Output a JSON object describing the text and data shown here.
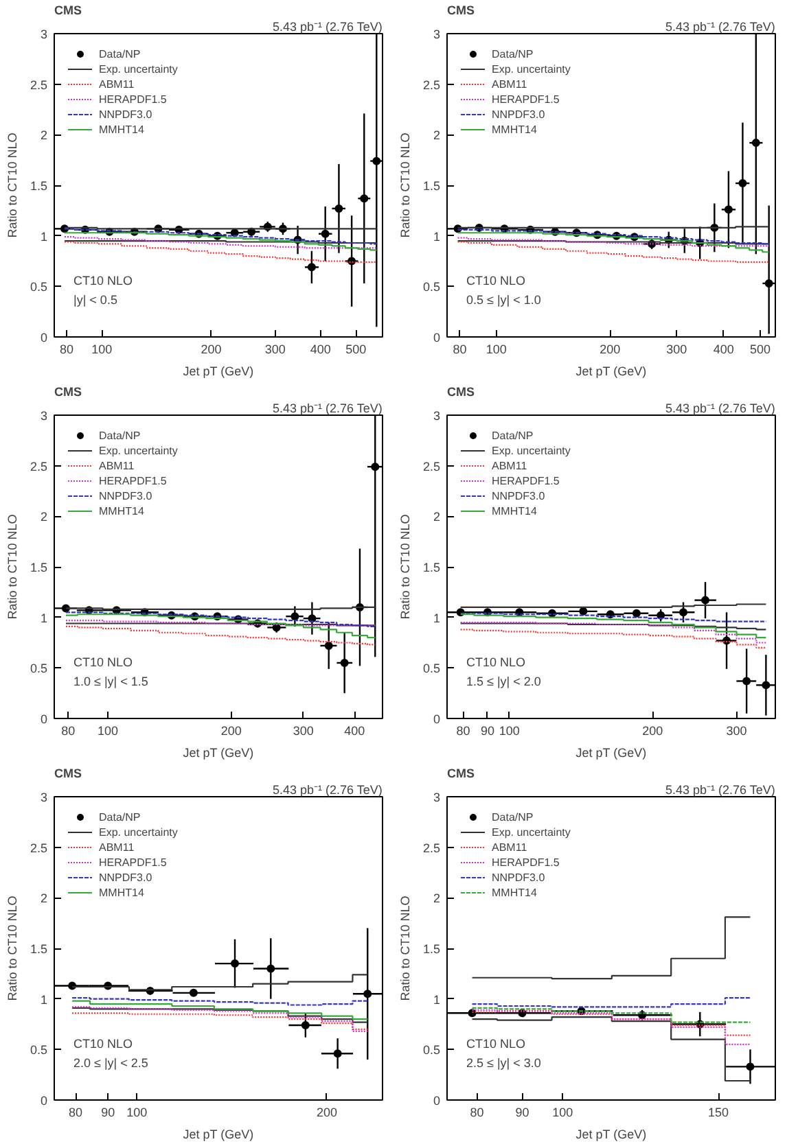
{
  "chart_data": [
    {
      "type": "step",
      "title": "CMS",
      "subtitle": "5.43 pb⁻¹ (2.76 TeV)",
      "xlabel": "Jet pT (GeV)",
      "ylabel": "Ratio to CT10 NLO",
      "annotations": [
        "CT10 NLO",
        "|y| < 0.5"
      ],
      "log": "x",
      "legend": "top left",
      "xlim": [
        74,
        592
      ],
      "xticks": [
        80,
        100,
        200,
        300,
        400,
        500
      ],
      "ylim": [
        0,
        3
      ],
      "yticks": [
        0,
        0.5,
        1,
        1.5,
        2,
        2.5,
        3
      ],
      "x": [
        79,
        90,
        105,
        123,
        143,
        163,
        185,
        208,
        232,
        258,
        286,
        315,
        346,
        378,
        412,
        449,
        487,
        527,
        570
      ],
      "series": [
        {
          "name": "Data/NP",
          "type": "scatter",
          "marker": "circle",
          "color": "#000000",
          "values": [
            1.07,
            1.06,
            1.04,
            1.04,
            1.07,
            1.06,
            1.02,
            1.0,
            1.03,
            1.04,
            1.09,
            1.07,
            0.96,
            0.69,
            1.02,
            1.27,
            0.75,
            1.37,
            1.74
          ],
          "errors": [
            0.02,
            0.02,
            0.02,
            0.02,
            0.02,
            0.02,
            0.02,
            0.03,
            0.03,
            0.04,
            0.05,
            0.06,
            0.14,
            0.16,
            0.27,
            0.44,
            0.45,
            0.84,
            [
              0.1,
              3.0
            ]
          ],
          "xerrors": [
            [
              74,
              84
            ],
            [
              84,
              97
            ],
            [
              97,
              114
            ],
            [
              114,
              133
            ],
            [
              133,
              153
            ],
            [
              153,
              174
            ],
            [
              174,
              196
            ],
            [
              196,
              220
            ],
            [
              220,
              245
            ],
            [
              245,
              272
            ],
            [
              272,
              300
            ],
            [
              300,
              330
            ],
            [
              330,
              362
            ],
            [
              362,
              395
            ],
            [
              395,
              430
            ],
            [
              430,
              468
            ],
            [
              468,
              507
            ],
            [
              507,
              548
            ],
            [
              548,
              592
            ]
          ]
        },
        {
          "name": "Exp. uncertainty",
          "color": "#333333",
          "line_style": "solid",
          "values": [
            1.08,
            1.08,
            1.07,
            1.07,
            1.07,
            1.07,
            1.07,
            1.07,
            1.07,
            1.07,
            1.07,
            1.07,
            1.07,
            1.07,
            1.07,
            1.07,
            1.07,
            1.07,
            1.07
          ]
        },
        {
          "color": "#333333",
          "line_style": "solid",
          "values": [
            0.95,
            0.95,
            0.95,
            0.95,
            0.95,
            0.95,
            0.95,
            0.95,
            0.94,
            0.94,
            0.94,
            0.94,
            0.94,
            0.94,
            0.93,
            0.93,
            0.93,
            0.93,
            0.93
          ]
        },
        {
          "name": "ABM11",
          "color": "#ff3030",
          "line_style": "dotted",
          "values": [
            0.94,
            0.93,
            0.92,
            0.9,
            0.88,
            0.87,
            0.85,
            0.83,
            0.82,
            0.8,
            0.79,
            0.78,
            0.77,
            0.76,
            0.75,
            0.75,
            0.74,
            0.74,
            0.74
          ]
        },
        {
          "name": "HERAPDF1.5",
          "color": "#cc33cc",
          "line_style": "dotted",
          "values": [
            0.99,
            0.98,
            0.97,
            0.96,
            0.95,
            0.94,
            0.93,
            0.92,
            0.91,
            0.9,
            0.9,
            0.89,
            0.89,
            0.88,
            0.88,
            0.88,
            0.88,
            0.88,
            0.88
          ]
        },
        {
          "name": "NNPDF3.0",
          "color": "#3333cc",
          "line_style": "dashed",
          "values": [
            1.07,
            1.06,
            1.05,
            1.04,
            1.04,
            1.03,
            1.02,
            1.01,
            1.0,
            0.99,
            0.98,
            0.97,
            0.96,
            0.95,
            0.95,
            0.94,
            0.93,
            0.93,
            0.92
          ]
        },
        {
          "name": "MMHT14",
          "color": "#33aa33",
          "line_style": "solid",
          "values": [
            1.03,
            1.03,
            1.03,
            1.03,
            1.02,
            1.01,
            1.0,
            0.99,
            0.98,
            0.97,
            0.96,
            0.95,
            0.94,
            0.92,
            0.91,
            0.9,
            0.88,
            0.87,
            0.86
          ]
        }
      ]
    },
    {
      "type": "step",
      "title": "CMS",
      "subtitle": "5.43 pb⁻¹ (2.76 TeV)",
      "xlabel": "Jet pT (GeV)",
      "ylabel": "Ratio to CT10 NLO",
      "annotations": [
        "CT10 NLO",
        "0.5 ≤ |y| < 1.0"
      ],
      "log": "x",
      "legend": "top left",
      "xlim": [
        74,
        548
      ],
      "xticks": [
        80,
        100,
        200,
        300,
        400,
        500
      ],
      "ylim": [
        0,
        3
      ],
      "yticks": [
        0,
        0.5,
        1,
        1.5,
        2,
        2.5,
        3
      ],
      "x": [
        79,
        90,
        105,
        123,
        143,
        163,
        185,
        208,
        232,
        258,
        286,
        315,
        346,
        378,
        412,
        449,
        487,
        527
      ],
      "series": [
        {
          "name": "Data/NP",
          "type": "scatter",
          "marker": "circle",
          "color": "#000000",
          "values": [
            1.07,
            1.08,
            1.07,
            1.06,
            1.04,
            1.03,
            1.01,
            1.0,
            0.99,
            0.92,
            0.96,
            0.95,
            0.93,
            1.08,
            1.26,
            1.52,
            1.92,
            0.53
          ],
          "errors": [
            0.02,
            0.02,
            0.02,
            0.02,
            0.02,
            0.02,
            0.02,
            0.03,
            0.03,
            0.05,
            0.08,
            0.12,
            0.16,
            0.24,
            0.38,
            0.6,
            [
              0.82,
              3.0
            ],
            [
              0.03,
              1.3
            ]
          ],
          "xerrors": [
            [
              74,
              84
            ],
            [
              84,
              97
            ],
            [
              97,
              114
            ],
            [
              114,
              133
            ],
            [
              133,
              153
            ],
            [
              153,
              174
            ],
            [
              174,
              196
            ],
            [
              196,
              220
            ],
            [
              220,
              245
            ],
            [
              245,
              272
            ],
            [
              272,
              300
            ],
            [
              300,
              330
            ],
            [
              330,
              362
            ],
            [
              362,
              395
            ],
            [
              395,
              430
            ],
            [
              430,
              468
            ],
            [
              468,
              507
            ],
            [
              507,
              548
            ]
          ]
        },
        {
          "name": "Exp. uncertainty",
          "color": "#333333",
          "line_style": "solid",
          "values": [
            1.08,
            1.08,
            1.08,
            1.08,
            1.08,
            1.08,
            1.08,
            1.08,
            1.08,
            1.08,
            1.08,
            1.08,
            1.08,
            1.08,
            1.08,
            1.09,
            1.09,
            1.09
          ]
        },
        {
          "color": "#333333",
          "line_style": "solid",
          "values": [
            0.95,
            0.95,
            0.95,
            0.95,
            0.95,
            0.94,
            0.94,
            0.94,
            0.94,
            0.94,
            0.93,
            0.93,
            0.93,
            0.93,
            0.93,
            0.92,
            0.92,
            0.92
          ]
        },
        {
          "name": "ABM11",
          "color": "#ff3030",
          "line_style": "dotted",
          "values": [
            0.94,
            0.93,
            0.91,
            0.89,
            0.87,
            0.85,
            0.83,
            0.82,
            0.8,
            0.79,
            0.78,
            0.77,
            0.76,
            0.75,
            0.75,
            0.74,
            0.74,
            0.74
          ]
        },
        {
          "name": "HERAPDF1.5",
          "color": "#cc33cc",
          "line_style": "dotted",
          "values": [
            0.98,
            0.97,
            0.96,
            0.96,
            0.95,
            0.94,
            0.94,
            0.93,
            0.92,
            0.92,
            0.91,
            0.91,
            0.9,
            0.9,
            0.9,
            0.9,
            0.9,
            0.9
          ]
        },
        {
          "name": "NNPDF3.0",
          "color": "#3333cc",
          "line_style": "dashed",
          "values": [
            1.06,
            1.06,
            1.05,
            1.05,
            1.04,
            1.03,
            1.02,
            1.01,
            1.0,
            0.99,
            0.98,
            0.97,
            0.96,
            0.95,
            0.94,
            0.93,
            0.93,
            0.92
          ]
        },
        {
          "name": "MMHT14",
          "color": "#33aa33",
          "line_style": "solid",
          "values": [
            1.03,
            1.03,
            1.03,
            1.03,
            1.02,
            1.01,
            1.0,
            0.99,
            0.98,
            0.97,
            0.96,
            0.95,
            0.93,
            0.91,
            0.9,
            0.88,
            0.86,
            0.84
          ]
        }
      ]
    },
    {
      "type": "step",
      "title": "CMS",
      "subtitle": "5.43 pb⁻¹ (2.76 TeV)",
      "xlabel": "Jet pT (GeV)",
      "ylabel": "Ratio to CT10 NLO",
      "annotations": [
        "CT10 NLO",
        "1.0 ≤ |y| < 1.5"
      ],
      "log": "x",
      "legend": "top left",
      "xlim": [
        74,
        468
      ],
      "xticks": [
        80,
        100,
        200,
        300,
        400
      ],
      "ylim": [
        0,
        3
      ],
      "yticks": [
        0,
        0.5,
        1,
        1.5,
        2,
        2.5,
        3
      ],
      "x": [
        79,
        90,
        105,
        123,
        143,
        163,
        185,
        208,
        232,
        258,
        286,
        315,
        346,
        378,
        412,
        449
      ],
      "series": [
        {
          "name": "Data/NP",
          "type": "scatter",
          "marker": "circle",
          "color": "#000000",
          "values": [
            1.09,
            1.07,
            1.07,
            1.05,
            1.02,
            1.01,
            1.01,
            0.98,
            0.94,
            0.9,
            1.01,
            0.99,
            0.72,
            0.55,
            1.1,
            2.49
          ],
          "errors": [
            0.02,
            0.02,
            0.02,
            0.02,
            0.02,
            0.02,
            0.02,
            0.03,
            0.04,
            0.05,
            0.1,
            0.16,
            0.23,
            0.3,
            0.58,
            [
              0.61,
              3.0
            ]
          ],
          "xerrors": [
            [
              74,
              84
            ],
            [
              84,
              97
            ],
            [
              97,
              114
            ],
            [
              114,
              133
            ],
            [
              133,
              153
            ],
            [
              153,
              174
            ],
            [
              174,
              196
            ],
            [
              196,
              220
            ],
            [
              220,
              245
            ],
            [
              245,
              272
            ],
            [
              272,
              300
            ],
            [
              300,
              330
            ],
            [
              330,
              362
            ],
            [
              362,
              395
            ],
            [
              395,
              430
            ],
            [
              430,
              468
            ]
          ]
        },
        {
          "name": "Exp. uncertainty",
          "color": "#333333",
          "line_style": "solid",
          "values": [
            1.09,
            1.09,
            1.08,
            1.08,
            1.08,
            1.08,
            1.08,
            1.08,
            1.08,
            1.08,
            1.08,
            1.08,
            1.09,
            1.09,
            1.1,
            1.1
          ]
        },
        {
          "color": "#333333",
          "line_style": "solid",
          "values": [
            0.94,
            0.94,
            0.94,
            0.94,
            0.94,
            0.94,
            0.94,
            0.94,
            0.93,
            0.93,
            0.93,
            0.93,
            0.93,
            0.92,
            0.92,
            0.92
          ]
        },
        {
          "name": "ABM11",
          "color": "#ff3030",
          "line_style": "dotted",
          "values": [
            0.91,
            0.9,
            0.89,
            0.87,
            0.85,
            0.84,
            0.82,
            0.81,
            0.8,
            0.79,
            0.78,
            0.77,
            0.76,
            0.75,
            0.74,
            0.73
          ]
        },
        {
          "name": "HERAPDF1.5",
          "color": "#cc33cc",
          "line_style": "dotted",
          "values": [
            0.97,
            0.97,
            0.96,
            0.96,
            0.95,
            0.95,
            0.94,
            0.94,
            0.93,
            0.93,
            0.93,
            0.92,
            0.92,
            0.92,
            0.92,
            0.92
          ]
        },
        {
          "name": "NNPDF3.0",
          "color": "#3333cc",
          "line_style": "dashed",
          "values": [
            1.05,
            1.05,
            1.04,
            1.04,
            1.03,
            1.02,
            1.01,
            1.0,
            0.99,
            0.98,
            0.97,
            0.96,
            0.95,
            0.93,
            0.92,
            0.91
          ]
        },
        {
          "name": "MMHT14",
          "color": "#33aa33",
          "line_style": "solid",
          "values": [
            1.02,
            1.03,
            1.03,
            1.02,
            1.01,
            1.0,
            0.99,
            0.97,
            0.96,
            0.94,
            0.92,
            0.9,
            0.88,
            0.85,
            0.82,
            0.8
          ]
        }
      ]
    },
    {
      "type": "step",
      "title": "CMS",
      "subtitle": "5.43 pb⁻¹ (2.76 TeV)",
      "xlabel": "Jet pT (GeV)",
      "ylabel": "Ratio to CT10 NLO",
      "annotations": [
        "CT10 NLO",
        "1.5 ≤ |y| < 2.0"
      ],
      "log": "x",
      "legend": "top left",
      "xlim": [
        74,
        362
      ],
      "xticks": [
        80,
        90,
        100,
        200,
        300
      ],
      "ylim": [
        0,
        3
      ],
      "yticks": [
        0,
        0.5,
        1,
        1.5,
        2,
        2.5,
        3
      ],
      "x": [
        79,
        90,
        105,
        123,
        143,
        163,
        185,
        208,
        232,
        258,
        286,
        315,
        346
      ],
      "series": [
        {
          "name": "Data/NP",
          "type": "scatter",
          "marker": "circle",
          "color": "#000000",
          "values": [
            1.05,
            1.05,
            1.05,
            1.04,
            1.06,
            1.03,
            1.04,
            1.02,
            1.05,
            1.17,
            0.77,
            0.37,
            0.33
          ],
          "errors": [
            0.02,
            0.02,
            0.02,
            0.02,
            0.02,
            0.02,
            0.03,
            0.06,
            0.1,
            0.18,
            0.28,
            0.32,
            0.3
          ],
          "xerrors": [
            [
              74,
              84
            ],
            [
              84,
              97
            ],
            [
              97,
              114
            ],
            [
              114,
              133
            ],
            [
              133,
              153
            ],
            [
              153,
              174
            ],
            [
              174,
              196
            ],
            [
              196,
              220
            ],
            [
              220,
              245
            ],
            [
              245,
              272
            ],
            [
              272,
              300
            ],
            [
              300,
              330
            ],
            [
              330,
              362
            ]
          ]
        },
        {
          "name": "Exp. uncertainty",
          "color": "#333333",
          "line_style": "solid",
          "values": [
            1.1,
            1.1,
            1.1,
            1.1,
            1.1,
            1.1,
            1.1,
            1.1,
            1.11,
            1.12,
            1.12,
            1.13,
            1.13
          ]
        },
        {
          "color": "#333333",
          "line_style": "solid",
          "values": [
            0.94,
            0.94,
            0.94,
            0.94,
            0.93,
            0.93,
            0.93,
            0.92,
            0.92,
            0.91,
            0.9,
            0.89,
            0.88
          ]
        },
        {
          "name": "ABM11",
          "color": "#ff3030",
          "line_style": "dotted",
          "values": [
            0.88,
            0.87,
            0.86,
            0.85,
            0.84,
            0.84,
            0.83,
            0.82,
            0.81,
            0.79,
            0.76,
            0.73,
            0.7
          ]
        },
        {
          "name": "HERAPDF1.5",
          "color": "#cc33cc",
          "line_style": "dotted",
          "values": [
            0.95,
            0.95,
            0.95,
            0.94,
            0.94,
            0.93,
            0.93,
            0.92,
            0.9,
            0.87,
            0.83,
            0.79,
            0.75
          ]
        },
        {
          "name": "NNPDF3.0",
          "color": "#3333cc",
          "line_style": "dashed",
          "values": [
            1.04,
            1.04,
            1.03,
            1.03,
            1.02,
            1.01,
            1.0,
            0.99,
            0.98,
            0.97,
            0.96,
            0.96,
            0.96
          ]
        },
        {
          "name": "MMHT14",
          "color": "#33aa33",
          "line_style": "solid",
          "values": [
            1.03,
            1.02,
            1.01,
            1.0,
            0.99,
            0.98,
            0.97,
            0.95,
            0.93,
            0.9,
            0.86,
            0.83,
            0.8
          ]
        }
      ]
    },
    {
      "type": "step",
      "title": "CMS",
      "subtitle": "5.43 pb⁻¹ (2.76 TeV)",
      "xlabel": "Jet pT (GeV)",
      "ylabel": "Ratio to CT10 NLO",
      "annotations": [
        "CT10 NLO",
        "2.0 ≤ |y| < 2.5"
      ],
      "log": "x",
      "legend": "top left",
      "xlim": [
        74,
        245
      ],
      "xticks": [
        80,
        90,
        100,
        200
      ],
      "ylim": [
        0,
        3
      ],
      "yticks": [
        0,
        0.5,
        1,
        1.5,
        2,
        2.5,
        3
      ],
      "x": [
        79,
        90,
        105,
        123,
        143,
        163,
        185,
        208,
        232
      ],
      "series": [
        {
          "name": "Data/NP",
          "type": "scatter",
          "marker": "circle",
          "color": "#000000",
          "values": [
            1.13,
            1.13,
            1.08,
            1.06,
            1.35,
            1.3,
            0.74,
            0.46,
            1.05
          ],
          "errors": [
            0.02,
            0.02,
            0.02,
            0.02,
            0.24,
            0.3,
            0.12,
            0.15,
            0.65
          ],
          "xerrors": [
            [
              74,
              84
            ],
            [
              84,
              97
            ],
            [
              97,
              114
            ],
            [
              114,
              133
            ],
            [
              133,
              153
            ],
            [
              153,
              174
            ],
            [
              174,
              196
            ],
            [
              196,
              220
            ],
            [
              220,
              245
            ]
          ]
        },
        {
          "name": "Exp. uncertainty",
          "color": "#333333",
          "line_style": "solid",
          "values": [
            1.12,
            1.12,
            1.09,
            1.12,
            1.12,
            1.15,
            1.17,
            1.17,
            1.24
          ]
        },
        {
          "color": "#333333",
          "line_style": "solid",
          "values": [
            0.91,
            0.9,
            0.9,
            0.9,
            0.89,
            0.88,
            0.83,
            0.8,
            0.77
          ]
        },
        {
          "name": "ABM11",
          "color": "#ff3030",
          "line_style": "dotted",
          "values": [
            0.86,
            0.86,
            0.85,
            0.85,
            0.84,
            0.82,
            0.8,
            0.76,
            0.7
          ]
        },
        {
          "name": "HERAPDF1.5",
          "color": "#cc33cc",
          "line_style": "dotted",
          "values": [
            0.92,
            0.91,
            0.9,
            0.89,
            0.88,
            0.86,
            0.82,
            0.78,
            0.68
          ]
        },
        {
          "name": "NNPDF3.0",
          "color": "#3333cc",
          "line_style": "dashed",
          "values": [
            1.01,
            1.0,
            0.99,
            0.98,
            0.97,
            0.96,
            0.94,
            0.95,
            0.98
          ]
        },
        {
          "name": "MMHT14",
          "color": "#33aa33",
          "line_style": "solid",
          "values": [
            0.98,
            0.95,
            0.95,
            0.93,
            0.9,
            0.88,
            0.86,
            0.83,
            0.8
          ]
        }
      ]
    },
    {
      "type": "step",
      "title": "CMS",
      "subtitle": "5.43 pb⁻¹ (2.76 TeV)",
      "xlabel": "Jet pT (GeV)",
      "ylabel": "Ratio to CT10 NLO",
      "annotations": [
        "CT10 NLO",
        "2.5 ≤ |y| < 3.0"
      ],
      "log": "x",
      "legend": "top left",
      "xlim": [
        74,
        174
      ],
      "xticks": [
        80,
        90,
        100,
        150
      ],
      "ylim": [
        0,
        3
      ],
      "yticks": [
        0,
        0.5,
        1,
        1.5,
        2,
        2.5,
        3
      ],
      "x": [
        79,
        90,
        105,
        123,
        143,
        163
      ],
      "series": [
        {
          "name": "Data/NP",
          "type": "scatter",
          "marker": "circle",
          "color": "#000000",
          "values": [
            0.86,
            0.86,
            0.88,
            0.84,
            0.75,
            0.33
          ],
          "errors": [
            0.02,
            0.02,
            0.03,
            0.05,
            0.12,
            0.17
          ],
          "xerrors": [
            [
              74,
              84
            ],
            [
              84,
              97
            ],
            [
              97,
              114
            ],
            [
              114,
              133
            ],
            [
              133,
              153
            ],
            [
              153,
              174
            ]
          ]
        },
        {
          "name": "Exp. uncertainty",
          "color": "#333333",
          "line_style": "solid",
          "values": [
            1.21,
            1.21,
            1.2,
            1.23,
            1.4,
            1.81
          ]
        },
        {
          "color": "#333333",
          "line_style": "solid",
          "values": [
            0.8,
            0.79,
            0.82,
            0.78,
            0.6,
            0.19
          ]
        },
        {
          "name": "ABM11",
          "color": "#ff3030",
          "line_style": "dotted",
          "values": [
            0.87,
            0.88,
            0.85,
            0.8,
            0.74,
            0.64
          ]
        },
        {
          "name": "HERAPDF1.5",
          "color": "#cc33cc",
          "line_style": "dotted",
          "values": [
            0.89,
            0.88,
            0.86,
            0.8,
            0.72,
            0.55
          ]
        },
        {
          "name": "NNPDF3.0",
          "color": "#3333cc",
          "line_style": "dashed",
          "values": [
            0.95,
            0.93,
            0.92,
            0.92,
            0.95,
            1.01
          ]
        },
        {
          "name": "MMHT14",
          "color": "#33aa33",
          "line_style": "dashed",
          "values": [
            0.91,
            0.9,
            0.88,
            0.86,
            0.77,
            0.77
          ]
        }
      ]
    }
  ]
}
